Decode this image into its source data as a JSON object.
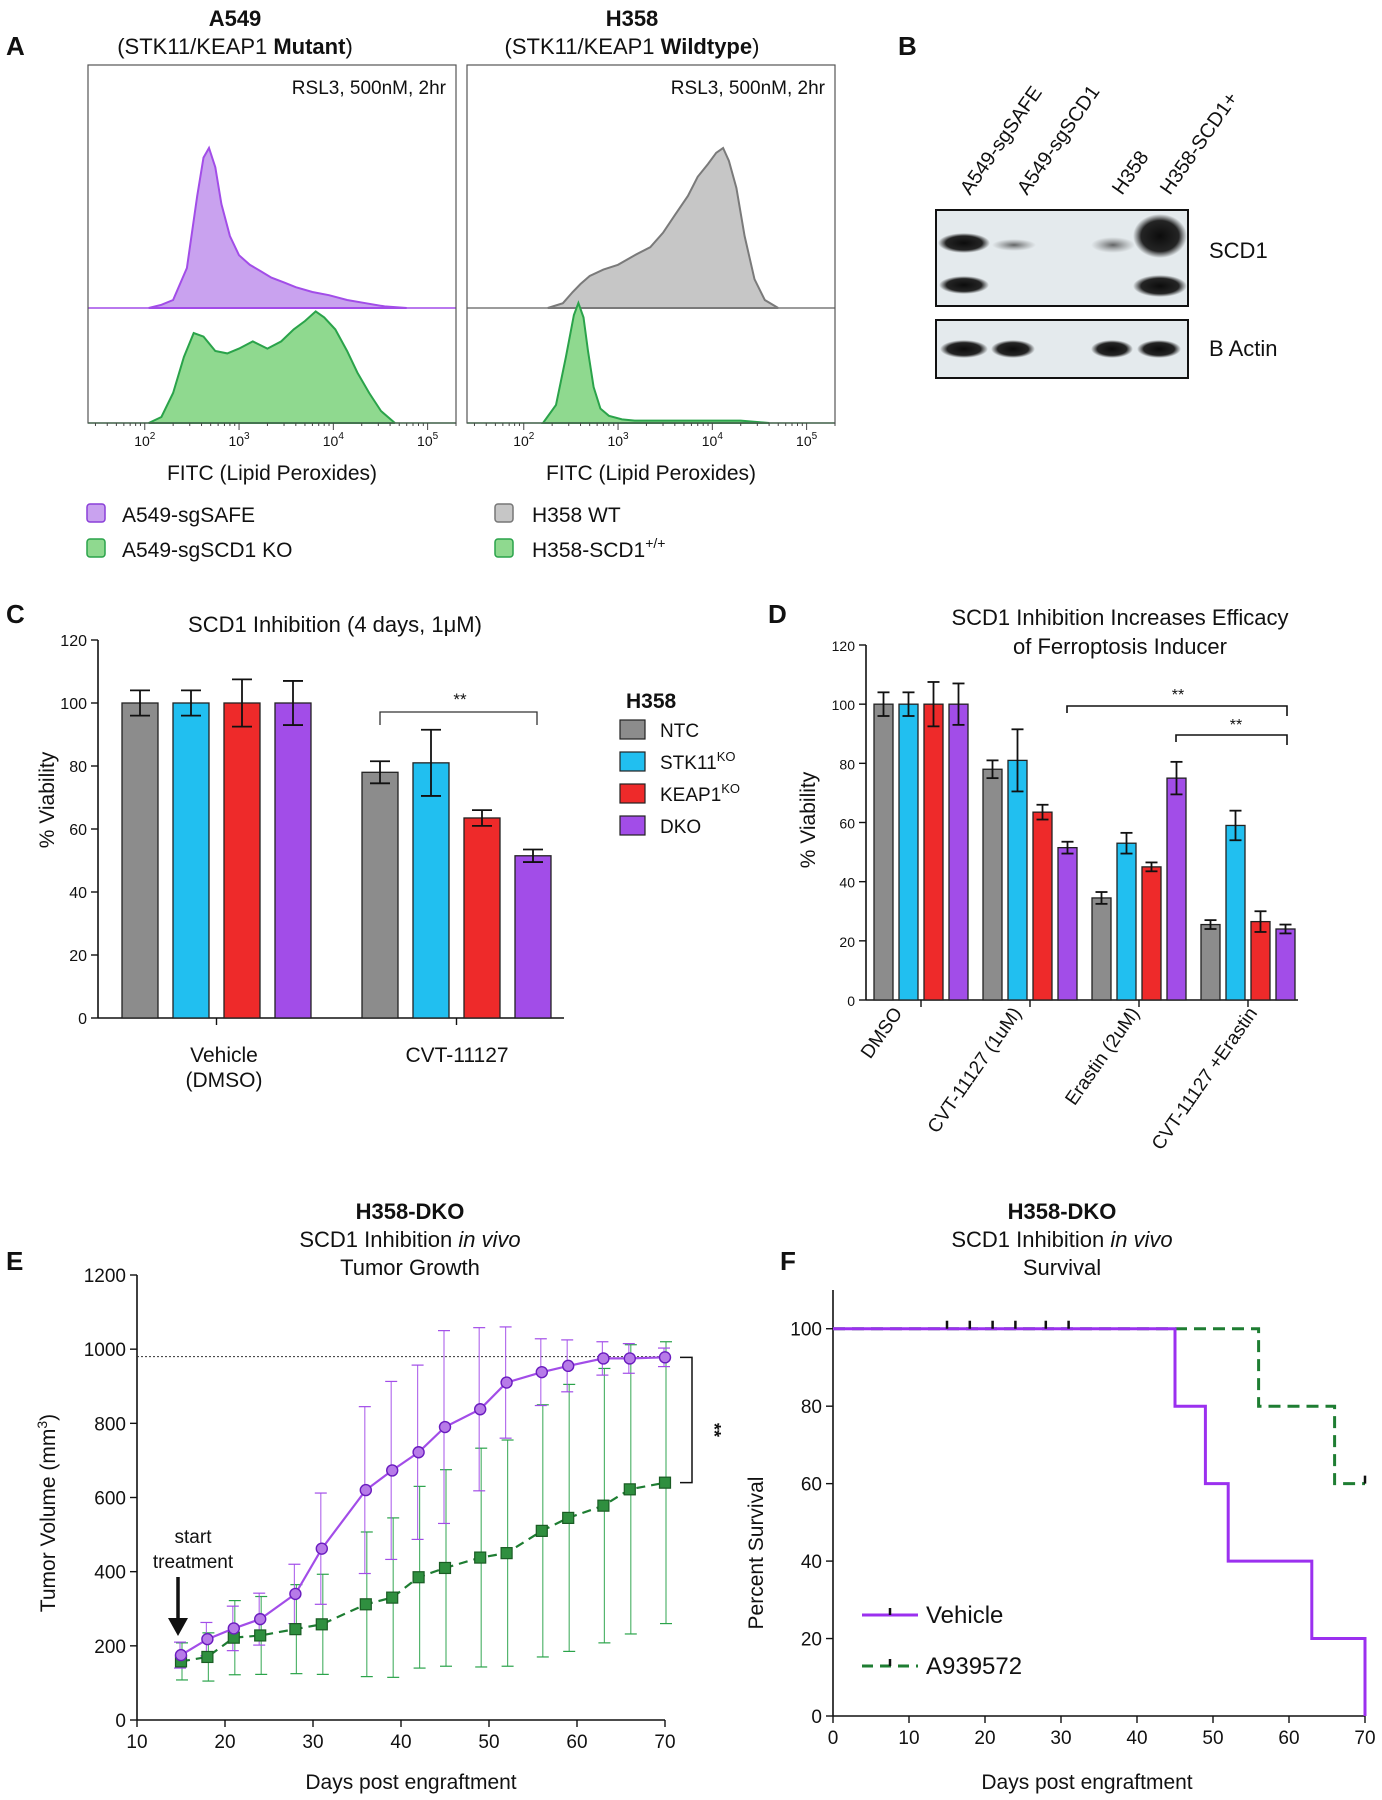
{
  "colors": {
    "purple": "#a24de8",
    "purple_fill": "#c9a2ef",
    "green_fill": "#8fd98f",
    "green_line": "#2aa34a",
    "gray": "#8c8c8c",
    "gray_fill": "#c6c6c6",
    "cyan": "#21bff0",
    "red": "#ee2a2a",
    "dkgreen": "#1e7d32",
    "survival_purple": "#9b30ef"
  },
  "panel_A": {
    "label": "A",
    "left": {
      "title_bold": "A549",
      "subtitle_pre": "(STK11/KEAP1 ",
      "subtitle_bold": "Mutant",
      "subtitle_post": ")",
      "annotation": "RSL3, 500nM, 2hr"
    },
    "right": {
      "title_bold": "H358",
      "subtitle_pre": "(STK11/KEAP1 ",
      "subtitle_bold": "Wildtype",
      "subtitle_post": ")",
      "annotation": "RSL3, 500nM, 2hr"
    },
    "xlabel": "FITC (Lipid Peroxides)",
    "tick_base": "10",
    "tick_exps": [
      "2",
      "3",
      "4",
      "5"
    ],
    "legend_left": [
      "A549-sgSAFE",
      "A549-sgSCD1 KO"
    ],
    "legend_right": {
      "wt": "H358 WT",
      "scd1_base": "H358-SCD1",
      "scd1_sup": "+/+"
    }
  },
  "panel_B": {
    "label": "B",
    "lanes": [
      "A549-sgSAFE",
      "A549-sgSCD1",
      "H358",
      "H358-SCD1+"
    ],
    "blots": [
      "SCD1",
      "B Actin"
    ]
  },
  "panel_C": {
    "label": "C",
    "title_pre": "SCD1 Inhibition (4 days, 1",
    "title_mu": "μ",
    "title_post": "M)",
    "ylabel": "% Viability",
    "groups": [
      [
        "Vehicle",
        "(DMSO)"
      ],
      [
        "CVT-11127"
      ]
    ],
    "legend_title": "H358",
    "legend": [
      {
        "base": "NTC",
        "sup": ""
      },
      {
        "base": "STK11",
        "sup": "KO"
      },
      {
        "base": "KEAP1",
        "sup": "KO"
      },
      {
        "base": "DKO",
        "sup": ""
      }
    ],
    "sig": "**"
  },
  "panel_D": {
    "label": "D",
    "title": [
      "SCD1 Inhibition Increases Efficacy",
      "of Ferroptosis Inducer"
    ],
    "ylabel": "% Viability",
    "groups": [
      "DMSO",
      "CVT-11127  (1uM)",
      "Erastin (2uM)",
      "CVT-11127 +Erastin"
    ],
    "sig": [
      "**",
      "**"
    ]
  },
  "panel_E": {
    "label": "E",
    "title_bold": "H358-DKO",
    "title2_pre": "SCD1 Inhibition ",
    "title2_it": "in vivo",
    "title3": "Tumor Growth",
    "xlabel": "Days post engraftment",
    "ylabel_pre": "Tumor Volume (mm",
    "ylabel_sup": "3",
    "ylabel_post": ")",
    "annotation": [
      "start",
      "treatment"
    ],
    "sig": "**"
  },
  "panel_F": {
    "label": "F",
    "title_bold": "H358-DKO",
    "title2_pre": "SCD1 Inhibition ",
    "title2_it": "in vivo",
    "title3": "Survival",
    "xlabel": "Days post engraftment",
    "ylabel": "Percent Survival",
    "legend": [
      "Vehicle",
      "A939572"
    ]
  },
  "chart_data": [
    {
      "panel": "A-left",
      "type": "area",
      "xscale": "log",
      "xlim": [
        25,
        200000
      ],
      "series": [
        {
          "name": "A549-sgSAFE",
          "x": [
            110,
            150,
            200,
            280,
            360,
            420,
            480,
            560,
            650,
            800,
            1000,
            1300,
            1700,
            2200,
            3000,
            4000,
            6000,
            9000,
            14000,
            22000,
            35000,
            60000
          ],
          "values": [
            0,
            0.02,
            0.05,
            0.25,
            0.7,
            0.94,
            1.0,
            0.88,
            0.65,
            0.45,
            0.33,
            0.27,
            0.23,
            0.19,
            0.16,
            0.13,
            0.1,
            0.08,
            0.05,
            0.03,
            0.01,
            0
          ]
        },
        {
          "name": "A549-sgSCD1 KO",
          "x": [
            110,
            150,
            200,
            260,
            330,
            420,
            560,
            750,
            1000,
            1400,
            2000,
            2800,
            3800,
            5000,
            6500,
            8000,
            10500,
            14000,
            18000,
            24000,
            32000,
            45000
          ],
          "values": [
            0,
            0.05,
            0.25,
            0.55,
            0.75,
            0.72,
            0.6,
            0.58,
            0.62,
            0.68,
            0.62,
            0.68,
            0.78,
            0.85,
            0.93,
            0.88,
            0.78,
            0.6,
            0.42,
            0.25,
            0.1,
            0
          ]
        }
      ]
    },
    {
      "panel": "A-right",
      "type": "area",
      "xscale": "log",
      "xlim": [
        25,
        200000
      ],
      "series": [
        {
          "name": "H358 WT",
          "x": [
            180,
            260,
            330,
            400,
            500,
            700,
            1000,
            1500,
            2200,
            3000,
            4000,
            5500,
            7000,
            9000,
            11000,
            13000,
            15000,
            18000,
            22000,
            28000,
            36000,
            50000
          ],
          "values": [
            0,
            0.03,
            0.1,
            0.15,
            0.2,
            0.24,
            0.27,
            0.33,
            0.38,
            0.47,
            0.58,
            0.7,
            0.82,
            0.9,
            0.97,
            1.0,
            0.92,
            0.75,
            0.45,
            0.18,
            0.05,
            0
          ]
        },
        {
          "name": "H358-SCD1+/+",
          "x": [
            160,
            220,
            280,
            340,
            380,
            430,
            480,
            550,
            650,
            800,
            1100,
            1500,
            2500,
            5000,
            10000,
            20000,
            40000
          ],
          "values": [
            0,
            0.15,
            0.55,
            0.9,
            1.0,
            0.88,
            0.6,
            0.3,
            0.12,
            0.06,
            0.03,
            0.02,
            0.02,
            0.02,
            0.02,
            0.02,
            0
          ]
        }
      ]
    },
    {
      "panel": "C",
      "type": "bar",
      "categories": [
        "Vehicle (DMSO)",
        "CVT-11127"
      ],
      "series": [
        {
          "name": "NTC",
          "values": [
            100,
            78
          ],
          "errors": [
            4,
            3.5
          ]
        },
        {
          "name": "STK11KO",
          "values": [
            100,
            81
          ],
          "errors": [
            4,
            10.5
          ]
        },
        {
          "name": "KEAP1KO",
          "values": [
            100,
            63.5
          ],
          "errors": [
            7.5,
            2.5
          ]
        },
        {
          "name": "DKO",
          "values": [
            100,
            51.5
          ],
          "errors": [
            7,
            2
          ]
        }
      ],
      "ylim": [
        0,
        120
      ],
      "yticks": [
        0,
        20,
        40,
        60,
        80,
        100,
        120
      ]
    },
    {
      "panel": "D",
      "type": "bar",
      "categories": [
        "DMSO",
        "CVT-11127  (1uM)",
        "Erastin (2uM)",
        "CVT-11127 +Erastin"
      ],
      "series": [
        {
          "name": "NTC",
          "values": [
            100,
            78,
            34.5,
            25.5
          ],
          "errors": [
            4,
            3,
            2,
            1.5
          ]
        },
        {
          "name": "STK11KO",
          "values": [
            100,
            81,
            53,
            59
          ],
          "errors": [
            4,
            10.5,
            3.5,
            5
          ]
        },
        {
          "name": "KEAP1KO",
          "values": [
            100,
            63.5,
            45,
            26.5
          ],
          "errors": [
            7.5,
            2.5,
            1.5,
            3.5
          ]
        },
        {
          "name": "DKO",
          "values": [
            100,
            51.5,
            75,
            24
          ],
          "errors": [
            7,
            2,
            5.5,
            1.5
          ]
        }
      ],
      "ylim": [
        0,
        120
      ],
      "yticks": [
        0,
        20,
        40,
        60,
        80,
        100,
        120
      ]
    },
    {
      "panel": "E",
      "type": "line",
      "xlim": [
        10,
        70
      ],
      "ylim": [
        0,
        1200
      ],
      "xticks": [
        10,
        20,
        30,
        40,
        50,
        60,
        70
      ],
      "yticks": [
        0,
        200,
        400,
        600,
        800,
        1000,
        1200
      ],
      "reference_line_y": 980,
      "series": [
        {
          "name": "Vehicle",
          "x": [
            15,
            18,
            21,
            24,
            28,
            31,
            36,
            39,
            42,
            45,
            49,
            52,
            56,
            59,
            63,
            66,
            70
          ],
          "values": [
            175,
            218,
            247,
            272,
            340,
            462,
            620,
            673,
            722,
            790,
            838,
            910,
            938,
            955,
            975,
            975,
            978
          ],
          "errors": [
            35,
            45,
            60,
            70,
            80,
            150,
            225,
            240,
            235,
            260,
            220,
            150,
            90,
            70,
            45,
            40,
            25
          ]
        },
        {
          "name": "A939572",
          "x": [
            15,
            18,
            21,
            24,
            28,
            31,
            36,
            39,
            42,
            45,
            49,
            52,
            56,
            59,
            63,
            66,
            70
          ],
          "values": [
            158,
            170,
            222,
            228,
            245,
            258,
            312,
            330,
            385,
            410,
            438,
            450,
            510,
            545,
            578,
            622,
            640
          ],
          "errors": [
            50,
            65,
            100,
            105,
            120,
            135,
            195,
            215,
            245,
            265,
            295,
            305,
            340,
            360,
            370,
            390,
            380
          ]
        }
      ]
    },
    {
      "panel": "F",
      "type": "line",
      "step": true,
      "xlim": [
        0,
        70
      ],
      "ylim": [
        0,
        110
      ],
      "xticks": [
        0,
        10,
        20,
        30,
        40,
        50,
        60,
        70
      ],
      "yticks": [
        0,
        20,
        40,
        60,
        80,
        100
      ],
      "series": [
        {
          "name": "Vehicle",
          "x": [
            0,
            45,
            45,
            49,
            49,
            52,
            52,
            63,
            63,
            70,
            70
          ],
          "values": [
            100,
            100,
            80,
            80,
            60,
            60,
            40,
            40,
            20,
            20,
            0
          ],
          "censored_x": [
            15,
            18,
            21,
            24,
            28,
            31
          ]
        },
        {
          "name": "A939572",
          "x": [
            0,
            56,
            56,
            66,
            66,
            70
          ],
          "values": [
            100,
            100,
            80,
            80,
            60,
            60
          ],
          "censored_x": [
            70
          ]
        }
      ]
    }
  ]
}
